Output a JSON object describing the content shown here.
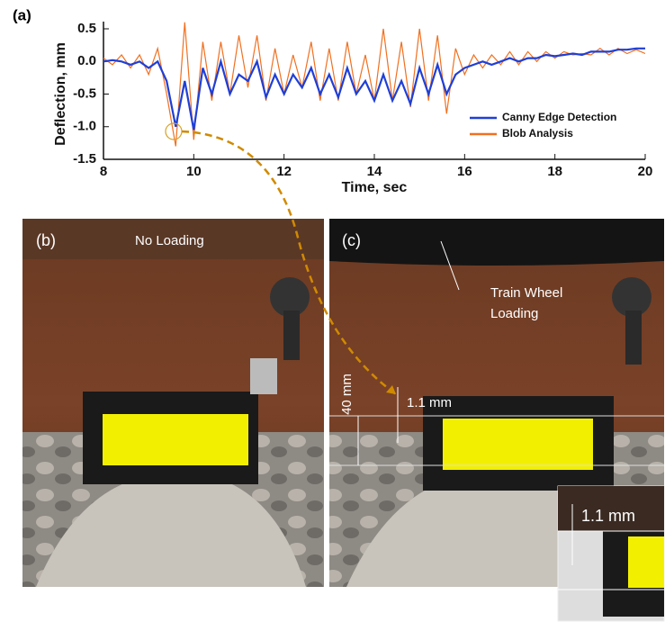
{
  "chart_data": {
    "type": "line",
    "label": "(a)",
    "x_label": "Time, sec",
    "y_label": "Deflection, mm",
    "x": [
      8,
      8.2,
      8.4,
      8.6,
      8.8,
      9,
      9.2,
      9.4,
      9.6,
      9.8,
      10,
      10.2,
      10.4,
      10.6,
      10.8,
      11,
      11.2,
      11.4,
      11.6,
      11.8,
      12,
      12.2,
      12.4,
      12.6,
      12.8,
      13,
      13.2,
      13.4,
      13.6,
      13.8,
      14,
      14.2,
      14.4,
      14.6,
      14.8,
      15,
      15.2,
      15.4,
      15.6,
      15.8,
      16,
      16.2,
      16.4,
      16.6,
      16.8,
      17,
      17.2,
      17.4,
      17.6,
      17.8,
      18,
      18.2,
      18.4,
      18.6,
      18.8,
      19,
      19.2,
      19.4,
      19.6,
      19.8,
      20
    ],
    "series": [
      {
        "name": "Canny Edge Detection",
        "color": "#1f3fd6",
        "values": [
          0,
          0.02,
          0,
          -0.05,
          0,
          -0.1,
          0,
          -0.3,
          -1.0,
          -0.3,
          -1.05,
          -0.1,
          -0.5,
          0,
          -0.5,
          -0.2,
          -0.3,
          0,
          -0.55,
          -0.2,
          -0.5,
          -0.2,
          -0.4,
          -0.1,
          -0.5,
          -0.2,
          -0.55,
          -0.1,
          -0.5,
          -0.3,
          -0.6,
          -0.2,
          -0.6,
          -0.3,
          -0.65,
          -0.1,
          -0.5,
          -0.05,
          -0.5,
          -0.2,
          -0.1,
          -0.05,
          0,
          -0.05,
          0,
          0.05,
          0,
          0.05,
          0.05,
          0.1,
          0.08,
          0.1,
          0.12,
          0.1,
          0.15,
          0.15,
          0.15,
          0.18,
          0.18,
          0.2,
          0.2
        ]
      },
      {
        "name": "Blob Analysis",
        "color": "#f07020",
        "values": [
          0.05,
          -0.05,
          0.1,
          -0.1,
          0.1,
          -0.2,
          0.2,
          -0.5,
          -1.3,
          0.6,
          -1.2,
          0.3,
          -0.6,
          0.3,
          -0.5,
          0.4,
          -0.4,
          0.4,
          -0.6,
          0.2,
          -0.5,
          0.1,
          -0.4,
          0.3,
          -0.6,
          0.2,
          -0.6,
          0.3,
          -0.5,
          0.1,
          -0.6,
          0.5,
          -0.6,
          0.3,
          -0.7,
          0.5,
          -0.6,
          0.4,
          -0.8,
          0.2,
          -0.2,
          0.1,
          -0.1,
          0.1,
          -0.05,
          0.15,
          -0.05,
          0.15,
          0,
          0.15,
          0.05,
          0.15,
          0.1,
          0.12,
          0.1,
          0.2,
          0.1,
          0.2,
          0.12,
          0.18,
          0.12
        ]
      }
    ],
    "xlim": [
      8,
      20
    ],
    "xticks": [
      8,
      10,
      12,
      14,
      16,
      18,
      20
    ],
    "ylim": [
      -1.5,
      0.5
    ],
    "yticks": [
      0.5,
      {
        "value": 0,
        "label": "0.0"
      },
      -0.5,
      {
        "value": -1,
        "label": "-1.0"
      },
      -1.5
    ],
    "legend": "lower right"
  },
  "photos": [
    {
      "label": "(b)",
      "caption": [
        "No Loading"
      ]
    },
    {
      "label": "(c)",
      "caption": [
        "Train Wheel",
        "Loading"
      ],
      "dimension": "40 mm",
      "gap": "1.1 mm"
    }
  ],
  "inset": {
    "gap": "1.1 mm"
  }
}
